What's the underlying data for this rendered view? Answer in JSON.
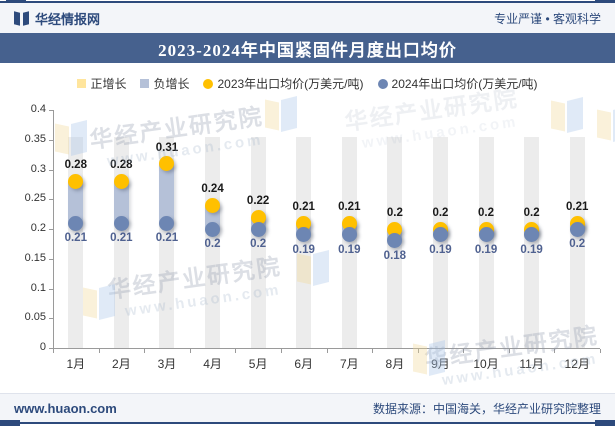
{
  "header": {
    "brand": "华经情报网",
    "slogan": "专业严谨 • 客观科学"
  },
  "title": "2023-2024年中国紧固件月度出口均价",
  "legend": [
    {
      "label": "正增长",
      "shape": "square",
      "color": "#ffe59d"
    },
    {
      "label": "负增长",
      "shape": "square",
      "color": "#b5c1d8"
    },
    {
      "label": "2023年出口均价(万美元/吨)",
      "shape": "circle",
      "color": "#ffc000"
    },
    {
      "label": "2024年出口均价(万美元/吨)",
      "shape": "circle",
      "color": "#6d86b3"
    }
  ],
  "chart_data": {
    "type": "scatter",
    "title": "2023-2024年中国紧固件月度出口均价",
    "categories": [
      "1月",
      "2月",
      "3月",
      "4月",
      "5月",
      "6月",
      "7月",
      "8月",
      "9月",
      "10月",
      "11月",
      "12月"
    ],
    "series": [
      {
        "name": "2023年出口均价(万美元/吨)",
        "color": "#ffc000",
        "values": [
          0.28,
          0.28,
          0.31,
          0.24,
          0.22,
          0.21,
          0.21,
          0.2,
          0.2,
          0.2,
          0.2,
          0.21
        ]
      },
      {
        "name": "2024年出口均价(万美元/吨)",
        "color": "#6d86b3",
        "values": [
          0.21,
          0.21,
          0.21,
          0.2,
          0.2,
          0.19,
          0.19,
          0.18,
          0.19,
          0.19,
          0.19,
          0.2
        ]
      }
    ],
    "growth": [
      "negative",
      "negative",
      "negative",
      "negative",
      "negative",
      "negative",
      "negative",
      "negative",
      "negative",
      "negative",
      "negative",
      "negative"
    ],
    "ylim": [
      0,
      0.4
    ],
    "yticks": [
      0,
      0.05,
      0.1,
      0.15,
      0.2,
      0.25,
      0.3,
      0.35,
      0.4
    ],
    "ylabel": "",
    "xlabel": "",
    "grid": false,
    "legend_position": "top",
    "band_top": 0.355,
    "band_color": "#ececec",
    "negative_color": "#b5c1d8",
    "positive_color": "#ffe59d"
  },
  "watermark": {
    "text": "华经产业研究院",
    "url": "www.huaon.com"
  },
  "footer": {
    "site": "www.huaon.com",
    "source": "数据来源：中国海关，华经产业研究院整理"
  }
}
